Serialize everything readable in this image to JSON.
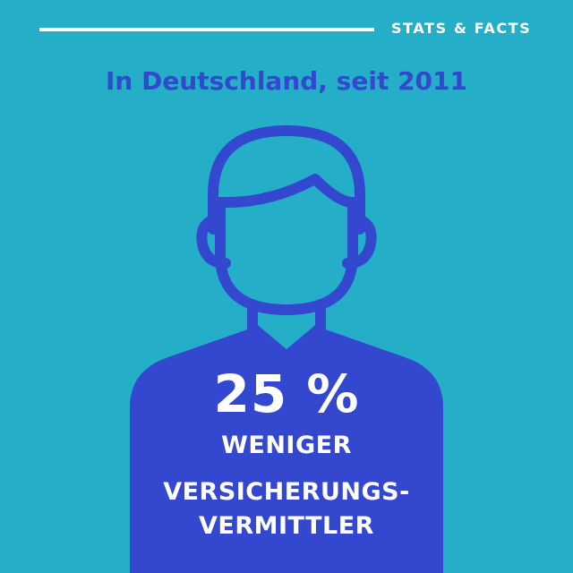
{
  "header": {
    "label": "STATS & FACTS"
  },
  "subtitle": "In Deutschland, seit 2011",
  "stat": {
    "value": "25 %",
    "lines": [
      "WENIGER",
      "VERSICHERUNGS-",
      "VERMITTLER"
    ]
  },
  "icon": "person-silhouette-icon",
  "colors": {
    "background": "#25aec8",
    "accent": "#3347cf",
    "text": "#ffffff"
  }
}
